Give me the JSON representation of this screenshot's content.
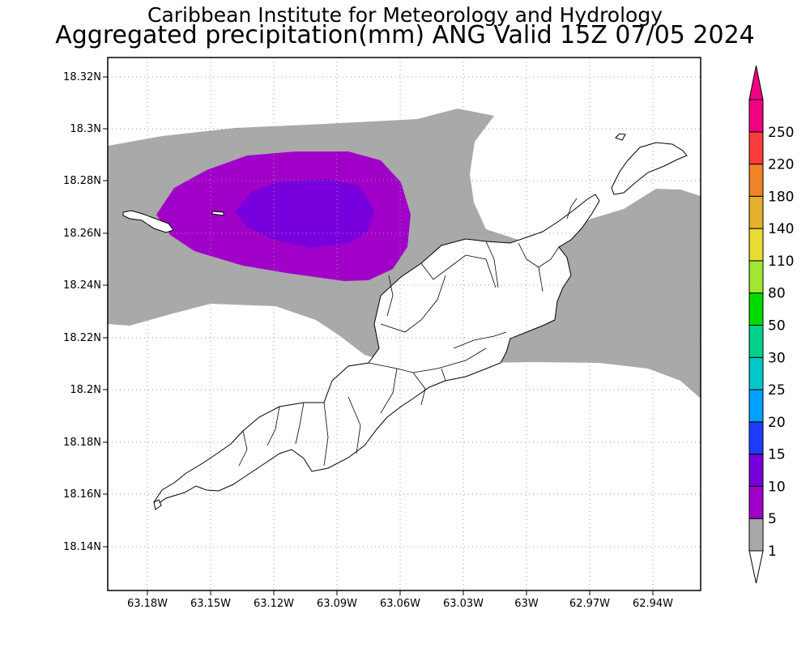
{
  "title": "Caribbean Institute for Meteorology and Hydrology",
  "subtitle": "Aggregated precipitation(mm) ANG Valid 15Z 07/05 2024",
  "x_ticks": [
    "63.18W",
    "63.15W",
    "63.12W",
    "63.09W",
    "63.06W",
    "63.03W",
    "63W",
    "62.97W",
    "62.94W"
  ],
  "y_ticks": [
    "18.32N",
    "18.3N",
    "18.28N",
    "18.26N",
    "18.24N",
    "18.22N",
    "18.2N",
    "18.18N",
    "18.16N",
    "18.14N"
  ],
  "legend": {
    "bins": [
      {
        "label": "1",
        "color": "#a9a9a9"
      },
      {
        "label": "5",
        "color": "#a000c8"
      },
      {
        "label": "10",
        "color": "#7800dc"
      },
      {
        "label": "15",
        "color": "#1e3cff"
      },
      {
        "label": "20",
        "color": "#00a0ff"
      },
      {
        "label": "25",
        "color": "#00c8c8"
      },
      {
        "label": "30",
        "color": "#00d28c"
      },
      {
        "label": "50",
        "color": "#00dc00"
      },
      {
        "label": "80",
        "color": "#a0e632"
      },
      {
        "label": "110",
        "color": "#e6dc32"
      },
      {
        "label": "140",
        "color": "#e6af2d"
      },
      {
        "label": "180",
        "color": "#f08228"
      },
      {
        "label": "220",
        "color": "#fa3c3c"
      },
      {
        "label": "250",
        "color": "#f00082"
      }
    ],
    "top_arrow_color": "#f00082"
  }
}
